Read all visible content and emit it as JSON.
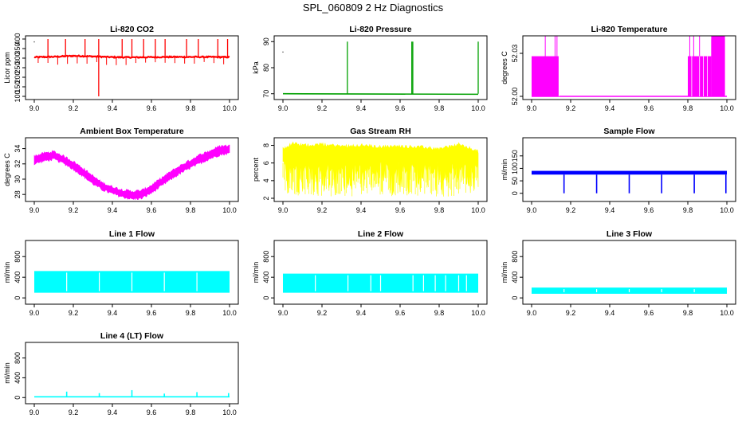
{
  "page": {
    "title": "SPL_060809  2 Hz Diagnostics"
  },
  "chart_data": [
    {
      "id": "co2",
      "type": "line",
      "title": "Li-820 CO2",
      "ylabel": "Licor ppm",
      "color": "#ff0000",
      "xlim": [
        9.0,
        10.0
      ],
      "ylim": [
        100,
        400
      ],
      "xticks": [
        "9.0",
        "9.2",
        "9.4",
        "9.6",
        "9.8",
        "10.0"
      ],
      "xtick_values": [
        9.0,
        9.2,
        9.4,
        9.6,
        9.8,
        10.0
      ],
      "yticks": [
        "100",
        "150",
        "200",
        "250",
        "300",
        "350",
        "400"
      ],
      "ytick_values": [
        100,
        150,
        200,
        250,
        300,
        350,
        400
      ],
      "baseline": [
        [
          9.0,
          305
        ],
        [
          9.1,
          307
        ],
        [
          9.2,
          312
        ],
        [
          9.3,
          309
        ],
        [
          9.4,
          305
        ],
        [
          9.5,
          304
        ],
        [
          9.6,
          305
        ],
        [
          9.7,
          306
        ],
        [
          9.8,
          306
        ],
        [
          9.9,
          306
        ],
        [
          10.0,
          305
        ]
      ],
      "spikes_up": [
        9.07,
        9.16,
        9.26,
        9.33,
        9.45,
        9.5,
        9.56,
        9.62,
        9.67,
        9.78,
        9.84,
        9.94,
        9.99
      ],
      "spike_top": 400,
      "dip": [
        9.33,
        100
      ],
      "outlier_point": [
        9.0,
        385
      ]
    },
    {
      "id": "pressure",
      "type": "line",
      "title": "Li-820 Pressure",
      "ylabel": "kPa",
      "color": "#00a000",
      "xlim": [
        9.0,
        10.0
      ],
      "ylim": [
        69,
        91
      ],
      "xticks": [
        "9.0",
        "9.2",
        "9.4",
        "9.6",
        "9.8",
        "10.0"
      ],
      "xtick_values": [
        9.0,
        9.2,
        9.4,
        9.6,
        9.8,
        10.0
      ],
      "yticks": [
        "70",
        "80",
        "90"
      ],
      "ytick_values": [
        70,
        80,
        90
      ],
      "baseline": [
        [
          9.0,
          70.0
        ],
        [
          10.0,
          69.8
        ]
      ],
      "spikes_up": [
        9.33,
        9.66,
        9.665,
        10.0
      ],
      "spike_top": 90,
      "outlier_point": [
        9.0,
        86
      ]
    },
    {
      "id": "licor_temp",
      "type": "area",
      "title": "Li-820 Temperature",
      "ylabel": "degrees C",
      "color": "#ff00ff",
      "xlim": [
        9.0,
        10.0
      ],
      "ylim": [
        52.0,
        52.04
      ],
      "xticks": [
        "9.0",
        "9.2",
        "9.4",
        "9.6",
        "9.8",
        "10.0"
      ],
      "xtick_values": [
        9.0,
        9.2,
        9.4,
        9.6,
        9.8,
        10.0
      ],
      "yticks": [
        "52.00",
        "52.03"
      ],
      "ytick_values": [
        52.0,
        52.03
      ],
      "extra_ytick_labels": [
        "52.03",
        "52.00"
      ],
      "baseline_value": 52.0,
      "blocks": [
        [
          9.0,
          9.14,
          52.028
        ],
        [
          9.8,
          9.92,
          52.028
        ],
        [
          9.92,
          9.99,
          52.05
        ]
      ],
      "spikes_up": [
        9.07,
        9.12,
        9.13,
        9.81,
        9.83,
        9.86
      ],
      "spike_top": 52.05
    },
    {
      "id": "box_temp",
      "type": "area",
      "title": "Ambient Box Temperature",
      "ylabel": "degrees C",
      "color": "#ff00ff",
      "xlim": [
        9.0,
        10.0
      ],
      "ylim": [
        27.5,
        35.0
      ],
      "xticks": [
        "9.0",
        "9.2",
        "9.4",
        "9.6",
        "9.8",
        "10.0"
      ],
      "xtick_values": [
        9.0,
        9.2,
        9.4,
        9.6,
        9.8,
        10.0
      ],
      "yticks": [
        "28",
        "30",
        "32",
        "34"
      ],
      "ytick_values": [
        28,
        30,
        32,
        34
      ],
      "upper": [
        [
          9.0,
          33.0
        ],
        [
          9.05,
          33.4
        ],
        [
          9.1,
          33.6
        ],
        [
          9.15,
          33.0
        ],
        [
          9.2,
          32.3
        ],
        [
          9.25,
          31.4
        ],
        [
          9.3,
          30.4
        ],
        [
          9.35,
          29.5
        ],
        [
          9.4,
          29.0
        ],
        [
          9.45,
          28.6
        ],
        [
          9.5,
          28.4
        ],
        [
          9.55,
          28.5
        ],
        [
          9.6,
          29.2
        ],
        [
          9.65,
          30.1
        ],
        [
          9.7,
          31.0
        ],
        [
          9.75,
          31.8
        ],
        [
          9.8,
          32.5
        ],
        [
          9.85,
          33.2
        ],
        [
          9.9,
          33.7
        ],
        [
          9.95,
          34.3
        ],
        [
          10.0,
          34.4
        ]
      ],
      "lower": [
        [
          9.0,
          32.0
        ],
        [
          9.05,
          32.4
        ],
        [
          9.1,
          32.6
        ],
        [
          9.15,
          32.1
        ],
        [
          9.2,
          31.3
        ],
        [
          9.25,
          30.4
        ],
        [
          9.3,
          29.4
        ],
        [
          9.35,
          28.6
        ],
        [
          9.4,
          28.1
        ],
        [
          9.45,
          27.7
        ],
        [
          9.5,
          27.4
        ],
        [
          9.55,
          27.5
        ],
        [
          9.6,
          28.2
        ],
        [
          9.65,
          29.1
        ],
        [
          9.7,
          30.0
        ],
        [
          9.75,
          30.8
        ],
        [
          9.8,
          31.5
        ],
        [
          9.85,
          32.1
        ],
        [
          9.9,
          32.7
        ],
        [
          9.95,
          33.2
        ],
        [
          10.0,
          33.4
        ]
      ]
    },
    {
      "id": "rh",
      "type": "area",
      "title": "Gas Stream RH",
      "ylabel": "percent",
      "color": "#ffff00",
      "xlim": [
        9.0,
        10.0
      ],
      "ylim": [
        2.0,
        8.5
      ],
      "xticks": [
        "9.0",
        "9.2",
        "9.4",
        "9.6",
        "9.8",
        "10.0"
      ],
      "xtick_values": [
        9.0,
        9.2,
        9.4,
        9.6,
        9.8,
        10.0
      ],
      "yticks": [
        "2",
        "4",
        "6",
        "8"
      ],
      "ytick_values": [
        2,
        4,
        6,
        8
      ],
      "upper": [
        [
          9.0,
          7.6
        ],
        [
          9.05,
          8.2
        ],
        [
          9.1,
          8.0
        ],
        [
          9.2,
          8.1
        ],
        [
          9.3,
          7.9
        ],
        [
          9.4,
          8.0
        ],
        [
          9.5,
          7.8
        ],
        [
          9.6,
          7.9
        ],
        [
          9.7,
          7.8
        ],
        [
          9.8,
          7.6
        ],
        [
          9.9,
          8.1
        ],
        [
          10.0,
          7.3
        ]
      ],
      "lower": [
        [
          9.0,
          2.2
        ],
        [
          9.1,
          2.2
        ],
        [
          9.2,
          2.4
        ],
        [
          9.3,
          2.3
        ],
        [
          9.4,
          2.5
        ],
        [
          9.5,
          2.4
        ],
        [
          9.6,
          2.3
        ],
        [
          9.7,
          2.5
        ],
        [
          9.8,
          2.4
        ],
        [
          9.9,
          2.3
        ],
        [
          10.0,
          2.5
        ]
      ],
      "band_low": 6.2
    },
    {
      "id": "sample_flow",
      "type": "area",
      "title": "Sample Flow",
      "ylabel": "ml/min",
      "color": "#0000ff",
      "xlim": [
        9.0,
        10.0
      ],
      "ylim": [
        -20,
        210
      ],
      "xticks": [
        "9.0",
        "9.2",
        "9.4",
        "9.6",
        "9.8",
        "10.0"
      ],
      "xtick_values": [
        9.0,
        9.2,
        9.4,
        9.6,
        9.8,
        10.0
      ],
      "yticks": [
        "0",
        "50",
        "100",
        "150"
      ],
      "ytick_values": [
        0,
        50,
        100,
        150
      ],
      "band": [
        75,
        90
      ],
      "dips_to": 0,
      "dips": [
        9.166,
        9.333,
        9.5,
        9.666,
        9.833,
        9.995
      ]
    },
    {
      "id": "line1",
      "type": "area",
      "title": "Line 1 Flow",
      "ylabel": "ml/min",
      "color": "#00ffff",
      "xlim": [
        9.0,
        10.0
      ],
      "ylim": [
        -60,
        1050
      ],
      "xticks": [
        "9.0",
        "9.2",
        "9.4",
        "9.6",
        "9.8",
        "10.0"
      ],
      "xtick_values": [
        9.0,
        9.2,
        9.4,
        9.6,
        9.8,
        10.0
      ],
      "yticks": [
        "0",
        "400",
        "800"
      ],
      "ytick_values": [
        0,
        400,
        800
      ],
      "band": [
        100,
        520
      ],
      "gaps": [
        9.166,
        9.333,
        9.5,
        9.666,
        9.833
      ]
    },
    {
      "id": "line2",
      "type": "area",
      "title": "Line 2 Flow",
      "ylabel": "ml/min",
      "color": "#00ffff",
      "xlim": [
        9.0,
        10.0
      ],
      "ylim": [
        -60,
        1050
      ],
      "xticks": [
        "9.0",
        "9.2",
        "9.4",
        "9.6",
        "9.8",
        "10.0"
      ],
      "xtick_values": [
        9.0,
        9.2,
        9.4,
        9.6,
        9.8,
        10.0
      ],
      "yticks": [
        "0",
        "400",
        "800"
      ],
      "ytick_values": [
        0,
        400,
        800
      ],
      "band": [
        100,
        470
      ],
      "gaps": [
        9.166,
        9.333,
        9.45,
        9.5,
        9.666,
        9.72,
        9.78,
        9.833,
        9.9,
        9.94
      ]
    },
    {
      "id": "line3",
      "type": "area",
      "title": "Line 3 Flow",
      "ylabel": "ml/min",
      "color": "#00ffff",
      "xlim": [
        9.0,
        10.0
      ],
      "ylim": [
        -60,
        1050
      ],
      "xticks": [
        "9.0",
        "9.2",
        "9.4",
        "9.6",
        "9.8",
        "10.0"
      ],
      "xtick_values": [
        9.0,
        9.2,
        9.4,
        9.6,
        9.8,
        10.0
      ],
      "yticks": [
        "0",
        "400",
        "800"
      ],
      "ytick_values": [
        0,
        400,
        800
      ],
      "band": [
        80,
        200
      ],
      "gaps": [
        9.166,
        9.333,
        9.5,
        9.666,
        9.833
      ]
    },
    {
      "id": "line4",
      "type": "line",
      "title": "Line 4 (LT) Flow",
      "ylabel": "ml/min",
      "color": "#00ffff",
      "xlim": [
        9.0,
        10.0
      ],
      "ylim": [
        -60,
        1050
      ],
      "xticks": [
        "9.0",
        "9.2",
        "9.4",
        "9.6",
        "9.8",
        "10.0"
      ],
      "xtick_values": [
        9.0,
        9.2,
        9.4,
        9.6,
        9.8,
        10.0
      ],
      "yticks": [
        "0",
        "400",
        "800"
      ],
      "ytick_values": [
        0,
        400,
        800
      ],
      "baseline_value": 15,
      "spikes_up": [
        9.166,
        9.333,
        9.5,
        9.666,
        9.833,
        9.995
      ],
      "spike_heights": [
        120,
        90,
        150,
        80,
        110,
        90
      ]
    }
  ]
}
